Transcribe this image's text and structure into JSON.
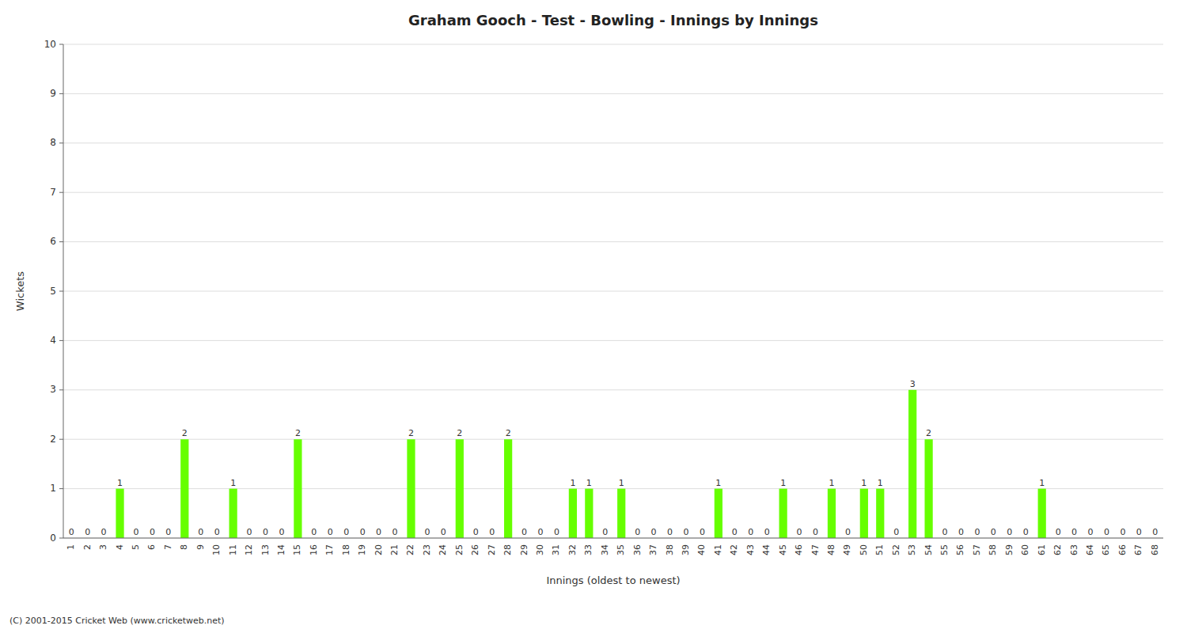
{
  "chart_data": {
    "type": "bar",
    "title": "Graham Gooch - Test - Bowling - Innings by Innings",
    "x_label": "Innings (oldest to newest)",
    "y_label": "Wickets",
    "categories": [
      "1",
      "2",
      "3",
      "4",
      "5",
      "6",
      "7",
      "8",
      "9",
      "10",
      "11",
      "12",
      "13",
      "14",
      "15",
      "16",
      "17",
      "18",
      "19",
      "20",
      "21",
      "22",
      "23",
      "24",
      "25",
      "26",
      "27",
      "28",
      "29",
      "30",
      "31",
      "32",
      "33",
      "34",
      "35",
      "36",
      "37",
      "38",
      "39",
      "40",
      "41",
      "42",
      "43",
      "44",
      "45",
      "46",
      "47",
      "48",
      "49",
      "50",
      "51",
      "52",
      "53",
      "54",
      "55",
      "56",
      "57",
      "58",
      "59",
      "60",
      "61",
      "62",
      "63",
      "64",
      "65",
      "66",
      "67",
      "68"
    ],
    "values": [
      0,
      0,
      0,
      1,
      0,
      0,
      0,
      2,
      0,
      0,
      1,
      0,
      0,
      0,
      2,
      0,
      0,
      0,
      0,
      0,
      0,
      2,
      0,
      0,
      2,
      0,
      0,
      2,
      0,
      0,
      0,
      1,
      1,
      0,
      1,
      0,
      0,
      0,
      0,
      0,
      1,
      0,
      0,
      0,
      1,
      0,
      0,
      1,
      0,
      1,
      1,
      0,
      3,
      2,
      0,
      0,
      0,
      0,
      0,
      0,
      1,
      0,
      0,
      0,
      0,
      0,
      0,
      0
    ],
    "color": "#66ff00",
    "ylim": [
      0,
      10
    ],
    "yticks": [
      0,
      1,
      2,
      3,
      4,
      5,
      6,
      7,
      8,
      9,
      10
    ],
    "grid": true,
    "data_labels": true,
    "annotations": [
      "(C) 2001-2015 Cricket Web (www.cricketweb.net)"
    ]
  }
}
